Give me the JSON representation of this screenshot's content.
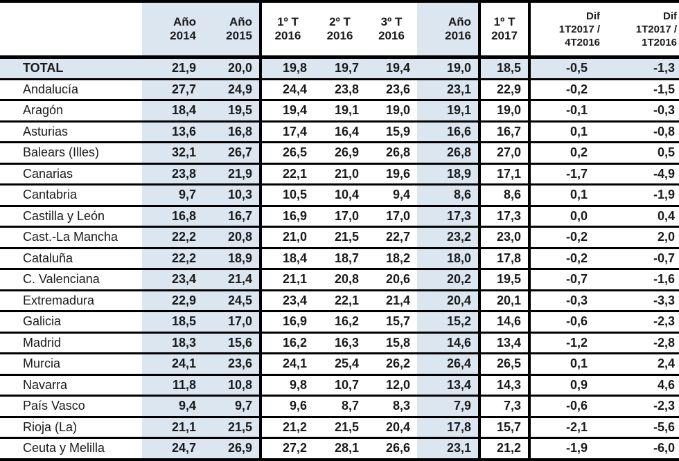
{
  "chart_data": {
    "type": "table",
    "title": "",
    "legend": "none",
    "columns": [
      {
        "key": "region",
        "label": ""
      },
      {
        "key": "ano_2014",
        "label": "Año\n2014"
      },
      {
        "key": "ano_2015",
        "label": "Año\n2015"
      },
      {
        "key": "t1_2016",
        "label": "1º T\n2016"
      },
      {
        "key": "t2_2016",
        "label": "2º T\n2016"
      },
      {
        "key": "t3_2016",
        "label": "3º T\n2016"
      },
      {
        "key": "ano_2016",
        "label": "Año\n2016"
      },
      {
        "key": "t1_2017",
        "label": "1º T\n2017"
      },
      {
        "key": "dif_1t2017_4t2016",
        "label": "Dif\n1T2017 /\n4T2016"
      },
      {
        "key": "dif_1t2017_1t2016",
        "label": "Dif\n1T2017 /\n1T2016"
      }
    ],
    "rows": [
      {
        "name": "TOTAL",
        "is_total": true,
        "values": [
          "21,9",
          "20,0",
          "19,8",
          "19,7",
          "19,4",
          "19,0",
          "18,5",
          "-0,5",
          "-1,3"
        ]
      },
      {
        "name": "Andalucía",
        "is_total": false,
        "values": [
          "27,7",
          "24,9",
          "24,4",
          "23,8",
          "23,6",
          "23,1",
          "22,9",
          "-0,2",
          "-1,5"
        ]
      },
      {
        "name": "Aragón",
        "is_total": false,
        "values": [
          "18,4",
          "19,5",
          "19,4",
          "19,1",
          "19,0",
          "19,1",
          "19,0",
          "-0,1",
          "-0,3"
        ]
      },
      {
        "name": "Asturias",
        "is_total": false,
        "values": [
          "13,6",
          "16,8",
          "17,4",
          "16,4",
          "15,9",
          "16,6",
          "16,7",
          "0,1",
          "-0,8"
        ]
      },
      {
        "name": "Balears (Illes)",
        "is_total": false,
        "values": [
          "32,1",
          "26,7",
          "26,5",
          "26,9",
          "26,8",
          "26,8",
          "27,0",
          "0,2",
          "0,5"
        ]
      },
      {
        "name": "Canarias",
        "is_total": false,
        "values": [
          "23,8",
          "21,9",
          "22,1",
          "21,0",
          "19,6",
          "18,9",
          "17,1",
          "-1,7",
          "-4,9"
        ]
      },
      {
        "name": "Cantabria",
        "is_total": false,
        "values": [
          "9,7",
          "10,3",
          "10,5",
          "10,4",
          "9,4",
          "8,6",
          "8,6",
          "0,1",
          "-1,9"
        ]
      },
      {
        "name": "Castilla y León",
        "is_total": false,
        "values": [
          "16,8",
          "16,7",
          "16,9",
          "17,0",
          "17,0",
          "17,3",
          "17,3",
          "0,0",
          "0,4"
        ]
      },
      {
        "name": "Cast.-La Mancha",
        "is_total": false,
        "values": [
          "22,2",
          "20,8",
          "21,0",
          "21,5",
          "22,7",
          "23,2",
          "23,0",
          "-0,2",
          "2,0"
        ]
      },
      {
        "name": "Cataluña",
        "is_total": false,
        "values": [
          "22,2",
          "18,9",
          "18,4",
          "18,7",
          "18,2",
          "18,0",
          "17,8",
          "-0,2",
          "-0,7"
        ]
      },
      {
        "name": "C. Valenciana",
        "is_total": false,
        "values": [
          "23,4",
          "21,4",
          "21,1",
          "20,8",
          "20,6",
          "20,2",
          "19,5",
          "-0,7",
          "-1,6"
        ]
      },
      {
        "name": "Extremadura",
        "is_total": false,
        "values": [
          "22,9",
          "24,5",
          "23,4",
          "22,1",
          "21,4",
          "20,4",
          "20,1",
          "-0,3",
          "-3,3"
        ]
      },
      {
        "name": "Galicia",
        "is_total": false,
        "values": [
          "18,5",
          "17,0",
          "16,9",
          "16,2",
          "15,7",
          "15,2",
          "14,6",
          "-0,6",
          "-2,3"
        ]
      },
      {
        "name": "Madrid",
        "is_total": false,
        "values": [
          "18,3",
          "15,6",
          "16,2",
          "16,3",
          "15,8",
          "14,6",
          "13,4",
          "-1,2",
          "-2,8"
        ]
      },
      {
        "name": "Murcia",
        "is_total": false,
        "values": [
          "24,1",
          "23,6",
          "24,1",
          "25,4",
          "26,2",
          "26,4",
          "26,5",
          "0,1",
          "2,4"
        ]
      },
      {
        "name": "Navarra",
        "is_total": false,
        "values": [
          "11,8",
          "10,8",
          "9,8",
          "10,7",
          "12,0",
          "13,4",
          "14,3",
          "0,9",
          "4,6"
        ]
      },
      {
        "name": "País Vasco",
        "is_total": false,
        "values": [
          "9,4",
          "9,7",
          "9,6",
          "8,7",
          "8,3",
          "7,9",
          "7,3",
          "-0,6",
          "-2,3"
        ]
      },
      {
        "name": "Rioja (La)",
        "is_total": false,
        "values": [
          "21,1",
          "21,5",
          "21,2",
          "21,5",
          "20,4",
          "17,8",
          "15,7",
          "-2,1",
          "-5,6"
        ]
      },
      {
        "name": "Ceuta y Melilla",
        "is_total": false,
        "values": [
          "24,7",
          "26,9",
          "27,2",
          "28,1",
          "26,6",
          "23,1",
          "21,2",
          "-1,9",
          "-6,0"
        ]
      }
    ]
  },
  "colors": {
    "shaded_cell": "#dce6f1",
    "border": "#000000",
    "text": "#1a1a1a"
  }
}
